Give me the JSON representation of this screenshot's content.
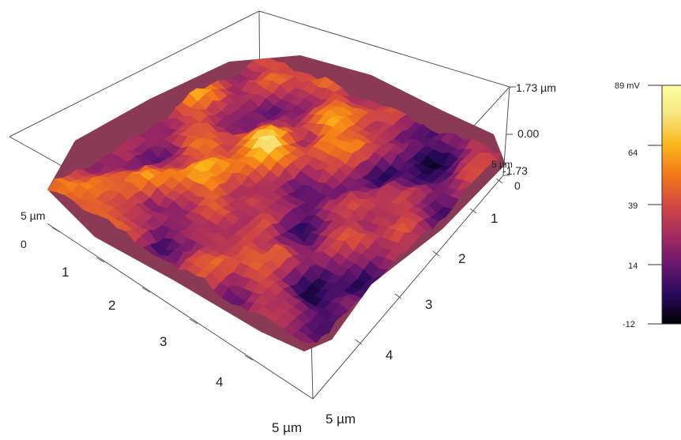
{
  "surface_plot": {
    "x_axis": {
      "end_label": "5 µm",
      "ticks": [
        "1",
        "2",
        "3",
        "4"
      ]
    },
    "y_axis": {
      "start_label": "0",
      "end_label": "5 µm",
      "ticks": [
        "1",
        "2",
        "3",
        "4"
      ]
    },
    "left_axis": {
      "start_label": "0",
      "end_label": "5 µm"
    },
    "right_axis": {
      "start_label": "0",
      "end_label": "5 µm"
    },
    "z_axis": {
      "labels": [
        "1.73 µm",
        "0.00",
        "-1.73"
      ]
    },
    "colormap": "inferno"
  },
  "colorbar": {
    "labels": [
      "89 mV",
      "64",
      "39",
      "14",
      "-12"
    ],
    "colors": [
      "#000004",
      "#2a0a5e",
      "#6a176e",
      "#a52c60",
      "#d44842",
      "#f37819",
      "#fbb61a",
      "#f6e57c",
      "#fcffa4"
    ]
  }
}
